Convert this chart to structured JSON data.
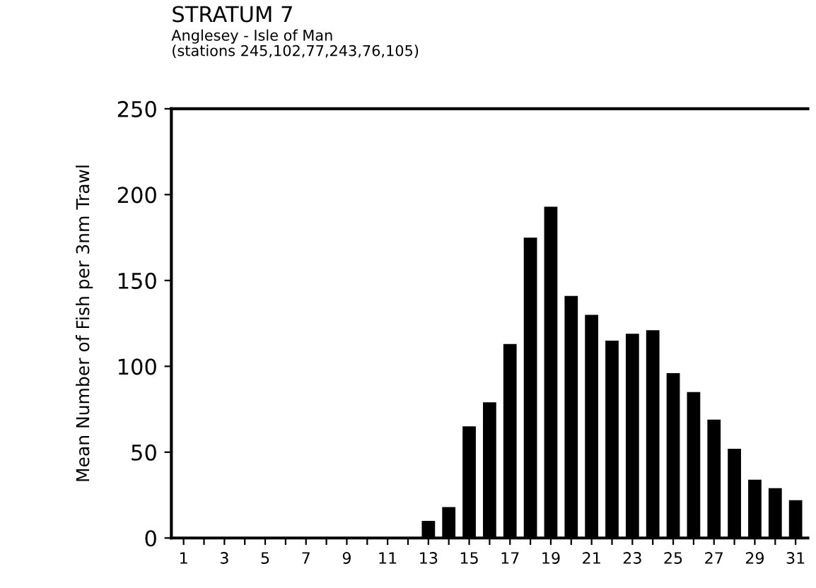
{
  "chart_data": {
    "type": "bar",
    "title": "STRATUM 7",
    "subtitle": "Anglesey - Isle of Man\n(stations 245,102,77,243,76,105)",
    "ylabel": "Mean Number of Fish per 3nm Trawl",
    "categories": [
      "1",
      null,
      "3",
      null,
      "5",
      null,
      "7",
      null,
      "9",
      null,
      "11",
      null,
      "13",
      null,
      "15",
      null,
      "17",
      null,
      "19",
      null,
      "21",
      null,
      "23",
      null,
      "25",
      null,
      "27",
      null,
      "29",
      null,
      "31"
    ],
    "values": [
      0,
      0,
      0,
      0,
      0,
      0,
      0,
      0,
      0,
      0,
      0,
      0,
      10,
      18,
      65,
      79,
      113,
      175,
      193,
      141,
      130,
      115,
      119,
      121,
      96,
      85,
      69,
      52,
      34,
      29,
      22
    ],
    "color": "#000000",
    "ylim": [
      0,
      250
    ],
    "yticks": [
      0,
      50,
      100,
      150,
      200,
      250
    ],
    "grid": false
  }
}
